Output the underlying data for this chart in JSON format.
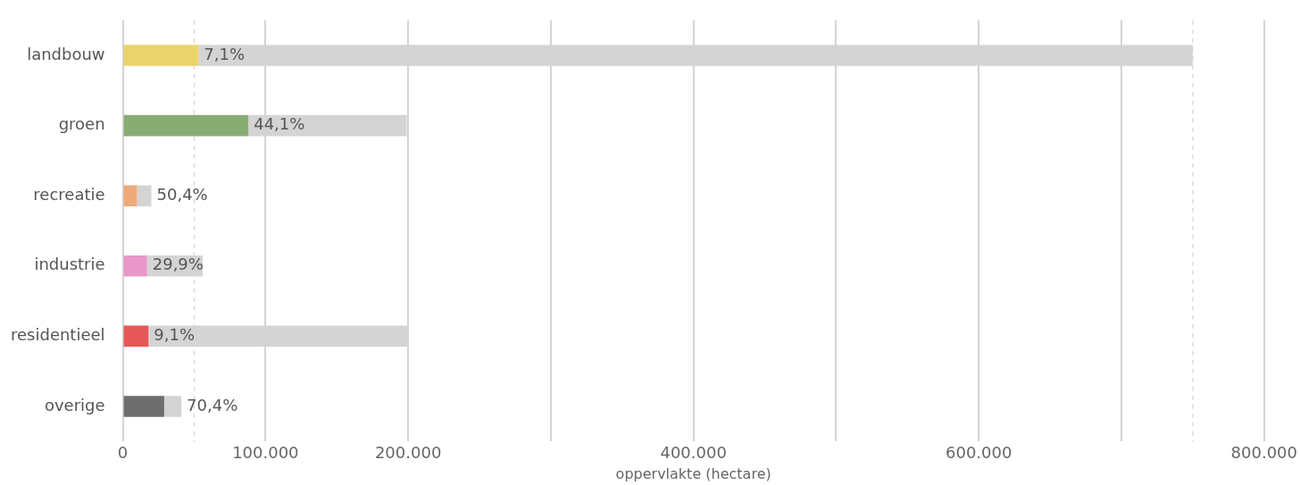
{
  "chart_data": {
    "type": "bar",
    "orientation": "horizontal",
    "stacked": true,
    "xlabel": "oppervlakte (hectare)",
    "categories": [
      "landbouw",
      "groen",
      "recreatie",
      "industrie",
      "residentieel",
      "overige"
    ],
    "series": [
      {
        "colors": [
          "#ebd36b",
          "#88ad73",
          "#eeaa78",
          "#e996c8",
          "#e85757",
          "#6e6e6e"
        ],
        "values": [
          53000,
          88000,
          10000,
          17000,
          18000,
          29000
        ]
      },
      {
        "color": "#d4d4d4",
        "values": [
          697000,
          111000,
          10000,
          39000,
          182000,
          12000
        ]
      }
    ],
    "xlim": [
      0,
      800000
    ],
    "xticks": [
      0,
      {
        "value": 100000,
        "label": "100.000"
      },
      {
        "value": 200000,
        "label": "200.000"
      },
      {
        "value": 300000,
        "label": null
      },
      {
        "value": 400000,
        "label": "400.000"
      },
      {
        "value": 500000,
        "label": null
      },
      {
        "value": 600000,
        "label": "600.000"
      },
      {
        "value": 700000,
        "label": null
      },
      {
        "value": 800000,
        "label": "800.000"
      }
    ],
    "ref_lines": [
      {
        "axis": "x",
        "value": 50000,
        "label": null,
        "color": "#d4d4d4",
        "line_style": "dashed"
      },
      {
        "axis": "x",
        "value": 750000,
        "label": null,
        "color": "#d4d4d4",
        "line_style": "dashed"
      }
    ],
    "annotations": [
      {
        "text": "7,1%",
        "x": 53000,
        "y": "landbouw"
      },
      {
        "text": "44,1%",
        "x": 88000,
        "y": "groen"
      },
      {
        "text": "50,4%",
        "x": 20000,
        "y": "recreatie"
      },
      {
        "text": "29,9%",
        "x": 17000,
        "y": "industrie"
      },
      {
        "text": "9,1%",
        "x": 18000,
        "y": "residentieel"
      },
      {
        "text": "70,4%",
        "x": 41000,
        "y": "overige"
      }
    ],
    "grid": "x",
    "legend": false
  }
}
